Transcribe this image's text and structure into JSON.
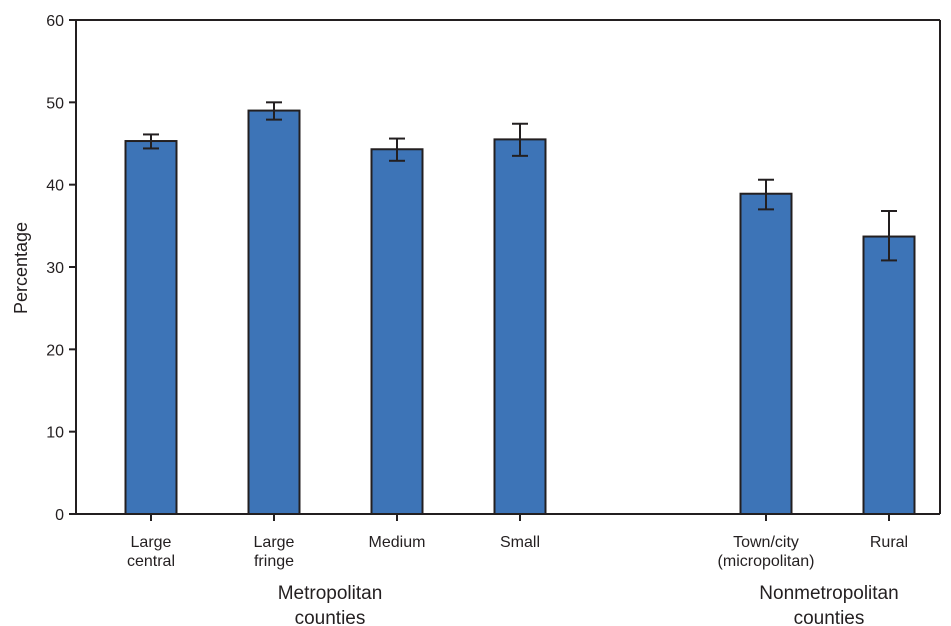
{
  "chart_data": {
    "type": "bar",
    "ylabel": "Percentage",
    "ylim": [
      0,
      60
    ],
    "yticks": [
      0,
      10,
      20,
      30,
      40,
      50,
      60
    ],
    "bar_color": "#3d74b7",
    "outline_color": "#231f20",
    "categories": [
      {
        "label_lines": [
          "Large",
          "central"
        ],
        "value": 45.3,
        "ci": [
          44.4,
          46.1
        ]
      },
      {
        "label_lines": [
          "Large",
          "fringe"
        ],
        "value": 49.0,
        "ci": [
          47.9,
          50.0
        ]
      },
      {
        "label_lines": [
          "Medium"
        ],
        "value": 44.3,
        "ci": [
          42.9,
          45.6
        ]
      },
      {
        "label_lines": [
          "Small"
        ],
        "value": 45.5,
        "ci": [
          43.5,
          47.4
        ]
      },
      {
        "label_lines": [
          "Town/city",
          "(micropolitan)"
        ],
        "value": 38.9,
        "ci": [
          37.0,
          40.6
        ]
      },
      {
        "label_lines": [
          "Rural"
        ],
        "value": 33.7,
        "ci": [
          30.8,
          36.8
        ]
      }
    ],
    "groups": [
      {
        "label_lines": [
          "Metropolitan",
          "counties"
        ],
        "members": [
          0,
          1,
          2,
          3
        ]
      },
      {
        "label_lines": [
          "Nonmetropolitan",
          "counties"
        ],
        "members": [
          4,
          5
        ]
      }
    ],
    "grid": false,
    "legend": "none"
  }
}
